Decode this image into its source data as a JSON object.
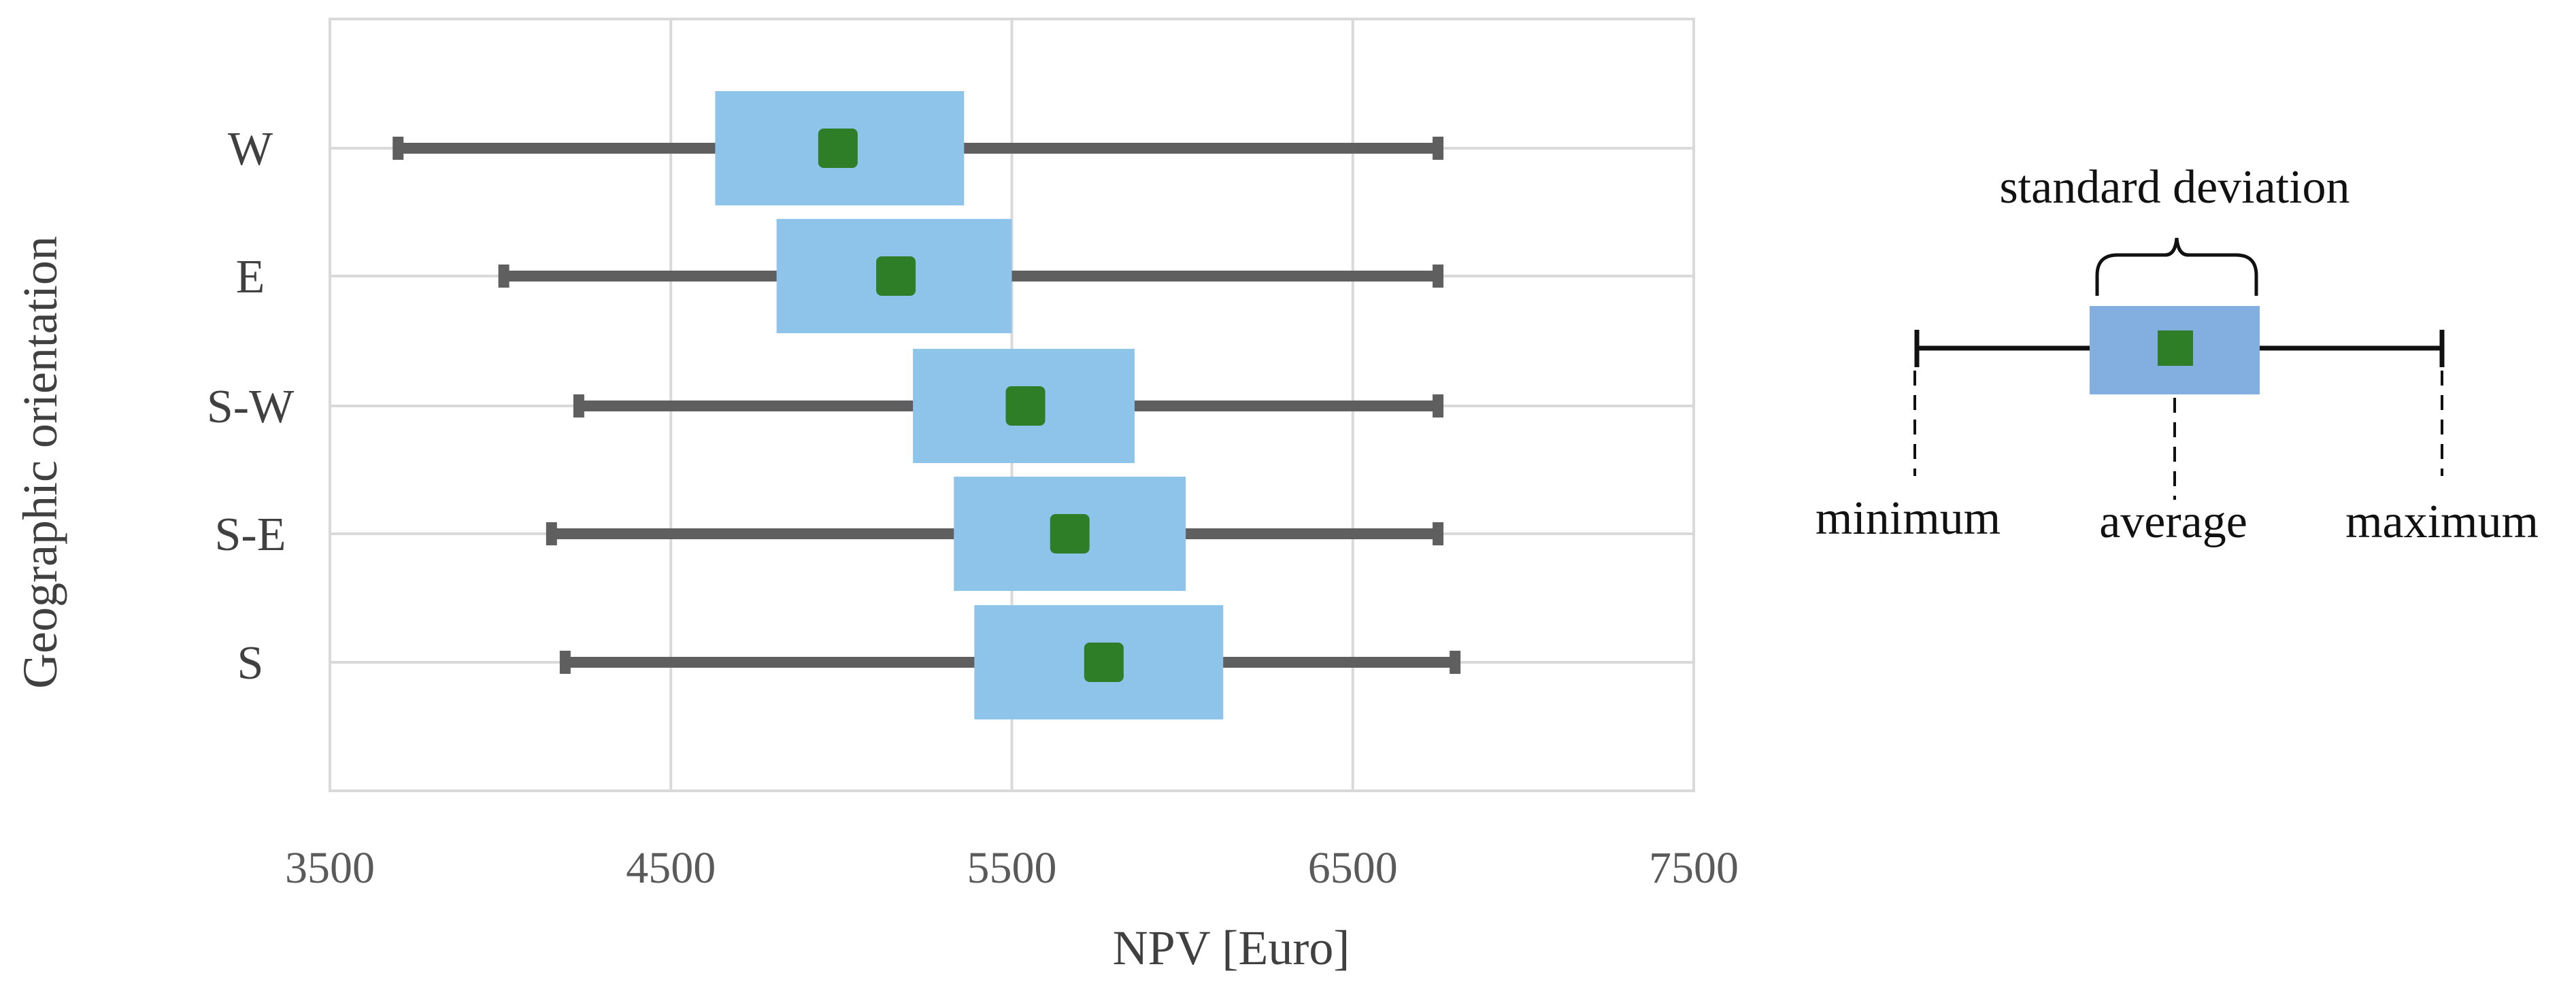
{
  "chart_data": {
    "type": "range-box",
    "orientation": "horizontal",
    "xlabel": "NPV [Euro]",
    "ylabel": "Geographic orientation",
    "xlim": [
      3500,
      7500
    ],
    "xticks": [
      3500,
      4500,
      5500,
      6500,
      7500
    ],
    "grid": true,
    "categories": [
      "W",
      "E",
      "S-W",
      "S-E",
      "S"
    ],
    "series": [
      {
        "category": "W",
        "min": 3700,
        "sd_low": 4630,
        "avg": 4990,
        "sd_high": 5360,
        "max": 6750
      },
      {
        "category": "E",
        "min": 4010,
        "sd_low": 4810,
        "avg": 5160,
        "sd_high": 5500,
        "max": 6750
      },
      {
        "category": "S-W",
        "min": 4230,
        "sd_low": 5210,
        "avg": 5540,
        "sd_high": 5860,
        "max": 6750
      },
      {
        "category": "S-E",
        "min": 4150,
        "sd_low": 5330,
        "avg": 5670,
        "sd_high": 6010,
        "max": 6750
      },
      {
        "category": "S",
        "min": 4190,
        "sd_low": 5390,
        "avg": 5770,
        "sd_high": 6120,
        "max": 6800
      }
    ],
    "colors": {
      "whisker": "#5f5f5f",
      "box": "#8ec4ea",
      "average": "#2e7d27",
      "grid": "#d9d9d9"
    }
  },
  "legend": {
    "title": "standard deviation",
    "minimum": "minimum",
    "average": "average",
    "maximum": "maximum",
    "colors": {
      "box": "#82aee0",
      "average": "#2e7d27",
      "line": "#111111"
    }
  }
}
